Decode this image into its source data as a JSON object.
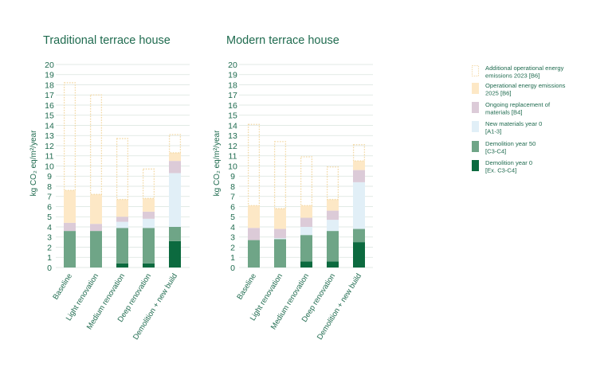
{
  "colors": {
    "additional_2023": "#f3d9a6",
    "operational_2025": "#fde8c6",
    "replacement": "#dccbd8",
    "new_materials": "#e1eff7",
    "demolition_50": "#6fa587",
    "demolition_0": "#0c6a3f",
    "text": "#1f6b4f",
    "grid": "#d9e3de"
  },
  "legend": [
    {
      "key": "additional_2023",
      "lines": [
        "Additional operational energy",
        "emissions 2023 [B6]"
      ],
      "style": "dotted"
    },
    {
      "key": "operational_2025",
      "lines": [
        "Operational energy emissions",
        "2025 [B6]"
      ],
      "style": "fill"
    },
    {
      "key": "replacement",
      "lines": [
        "Ongoing replacement of",
        "materials [B4]"
      ],
      "style": "fill"
    },
    {
      "key": "new_materials",
      "lines": [
        "New materials year 0",
        "[A1-3]"
      ],
      "style": "fill"
    },
    {
      "key": "demolition_50",
      "lines": [
        "Demolition year 50",
        "[C3-C4]"
      ],
      "style": "fill"
    },
    {
      "key": "demolition_0",
      "lines": [
        "Demolition year 0",
        "[Ex. C3-C4]"
      ],
      "style": "fill"
    }
  ],
  "chart_data": [
    {
      "type": "bar",
      "stacked": true,
      "title": "Traditional terrace house",
      "ylabel": "kg CO₂ eq/m²/year",
      "ylim": [
        0,
        20
      ],
      "yticks": [
        "0",
        "1",
        "2",
        "3",
        "4",
        "5",
        "6",
        "7",
        "8",
        "9",
        "10",
        "11",
        "12",
        "13",
        "14",
        "15",
        "16",
        "17",
        "18",
        "19",
        "20"
      ],
      "grid": true,
      "categories": [
        "Baseline",
        "Light renovation",
        "Medium renovation",
        "Deep renovation",
        "Demolition + new build"
      ],
      "series": [
        {
          "name": "Demolition year 0 [Ex. C3-C4]",
          "key": "demolition_0",
          "values": [
            0,
            0,
            0.4,
            0.4,
            2.6
          ]
        },
        {
          "name": "Demolition year 50 [C3-C4]",
          "key": "demolition_50",
          "values": [
            3.6,
            3.6,
            3.5,
            3.5,
            1.4
          ]
        },
        {
          "name": "New materials year 0 [A1-3]",
          "key": "new_materials",
          "values": [
            0,
            0,
            0.6,
            0.9,
            5.3
          ]
        },
        {
          "name": "Ongoing replacement of materials [B4]",
          "key": "replacement",
          "values": [
            0.8,
            0.7,
            0.5,
            0.7,
            1.2
          ]
        },
        {
          "name": "Operational energy emissions 2025 [B6]",
          "key": "operational_2025",
          "values": [
            3.2,
            2.9,
            1.7,
            1.3,
            0.8
          ]
        },
        {
          "name": "Additional operational energy emissions 2023 [B6]",
          "key": "additional_2023",
          "values": [
            10.6,
            9.8,
            6.0,
            2.9,
            1.8
          ]
        }
      ]
    },
    {
      "type": "bar",
      "stacked": true,
      "title": "Modern terrace house",
      "ylabel": "kg CO₂ eq/m²/year",
      "ylim": [
        0,
        20
      ],
      "yticks": [
        "0",
        "1",
        "2",
        "3",
        "4",
        "5",
        "6",
        "7",
        "8",
        "9",
        "10",
        "11",
        "12",
        "13",
        "14",
        "15",
        "16",
        "17",
        "18",
        "19",
        "20"
      ],
      "grid": true,
      "categories": [
        "Baseline",
        "Light renovation",
        "Medium renovation",
        "Deep renovation",
        "Demolition + new build"
      ],
      "series": [
        {
          "name": "Demolition year 0 [Ex. C3-C4]",
          "key": "demolition_0",
          "values": [
            0,
            0,
            0.6,
            0.6,
            2.5
          ]
        },
        {
          "name": "Demolition year 50 [C3-C4]",
          "key": "demolition_50",
          "values": [
            2.7,
            2.8,
            2.6,
            3.0,
            1.3
          ]
        },
        {
          "name": "New materials year 0 [A1-3]",
          "key": "new_materials",
          "values": [
            0,
            0.1,
            0.8,
            1.1,
            4.6
          ]
        },
        {
          "name": "Ongoing replacement of materials [B4]",
          "key": "replacement",
          "values": [
            1.2,
            0.9,
            0.9,
            0.9,
            1.2
          ]
        },
        {
          "name": "Operational energy emissions 2025 [B6]",
          "key": "operational_2025",
          "values": [
            2.2,
            2.0,
            1.2,
            1.1,
            0.9
          ]
        },
        {
          "name": "Additional operational energy emissions 2023 [B6]",
          "key": "additional_2023",
          "values": [
            8.0,
            6.6,
            4.8,
            3.2,
            1.6
          ]
        }
      ]
    }
  ]
}
